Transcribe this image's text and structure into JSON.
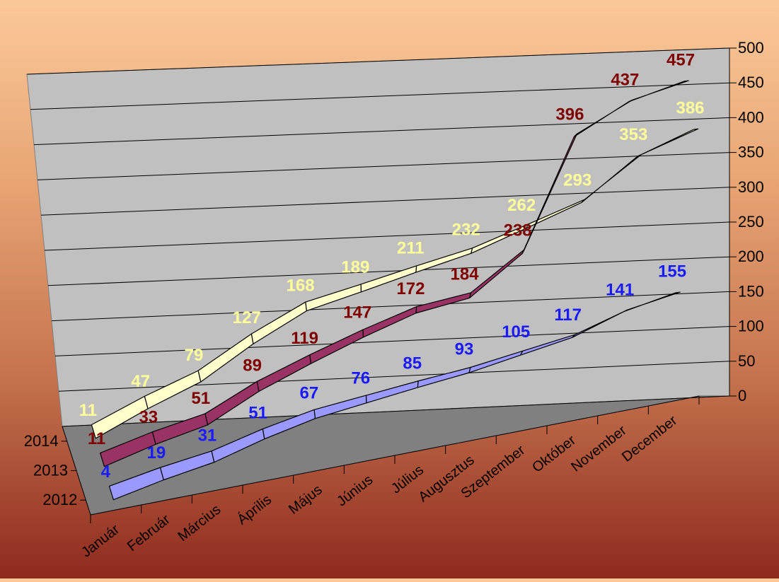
{
  "chart_data": {
    "type": "line",
    "title": "",
    "xlabel": "",
    "ylabel": "",
    "categories": [
      "Január",
      "Február",
      "Március",
      "Április",
      "Május",
      "Június",
      "Július",
      "Augusztus",
      "Szeptember",
      "Október",
      "November",
      "December"
    ],
    "ylim": [
      0,
      500
    ],
    "yticks": [
      0,
      50,
      100,
      150,
      200,
      250,
      300,
      350,
      400,
      450,
      500
    ],
    "depth_labels": [
      "2014",
      "2013",
      "2012"
    ],
    "grid": true,
    "series": [
      {
        "name": "2012",
        "values": [
          4,
          19,
          31,
          51,
          67,
          76,
          85,
          93,
          105,
          117,
          141,
          155
        ],
        "ribbon_color": "#9999ff",
        "label_color": "#1a1aff"
      },
      {
        "name": "2013",
        "values": [
          11,
          33,
          51,
          89,
          119,
          147,
          172,
          184,
          238,
          396,
          437,
          457
        ],
        "ribbon_color": "#993366",
        "label_color": "#800000"
      },
      {
        "name": "2014",
        "values": [
          11,
          47,
          79,
          127,
          168,
          189,
          211,
          232,
          262,
          293,
          353,
          386
        ],
        "ribbon_color": "#ffffcc",
        "label_color": "#ffff99"
      }
    ],
    "colors": {
      "back_wall": "#c0c0c0",
      "floor": "#808080",
      "grid": "#000000"
    }
  }
}
